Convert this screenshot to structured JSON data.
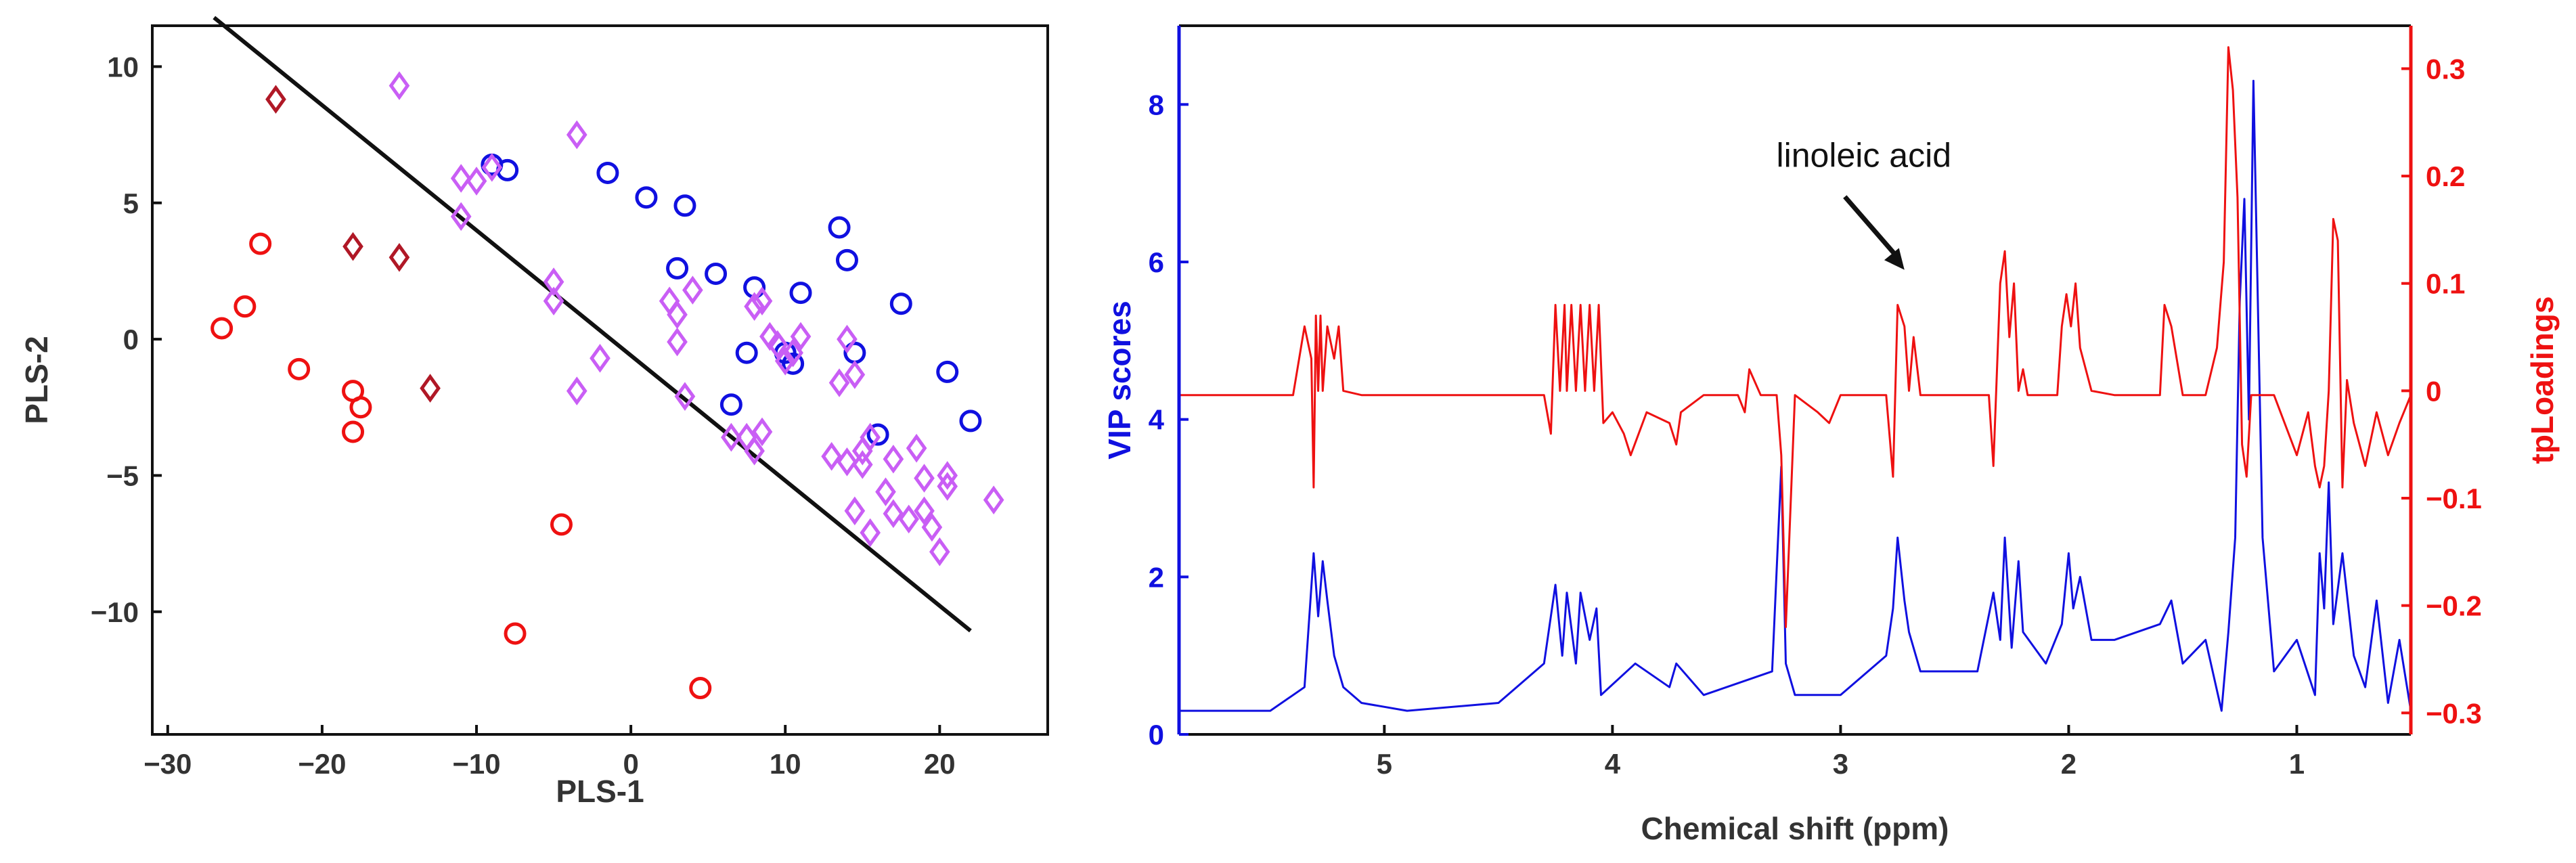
{
  "colors": {
    "blue": "#1010e0",
    "red": "#ee1111",
    "violet": "#c95ef5",
    "darkred": "#b01826",
    "black": "#111111"
  },
  "chart_data": [
    {
      "type": "scatter",
      "xlabel": "PLS-1",
      "ylabel": "PLS-2",
      "xlim": [
        -31,
        27
      ],
      "ylim": [
        -14.5,
        11.5
      ],
      "xticks": [
        -30,
        -20,
        -10,
        0,
        10,
        20
      ],
      "yticks": [
        10,
        5,
        0,
        -5,
        -10
      ],
      "xtick_labels": [
        "−30",
        "−20",
        "−10",
        "0",
        "10",
        "20"
      ],
      "ytick_labels": [
        "10",
        "5",
        "0",
        "−5",
        "−10"
      ],
      "separator_line": {
        "x": [
          -27,
          22
        ],
        "y": [
          11.8,
          -10.7
        ]
      },
      "series": [
        {
          "name": "blue circles",
          "marker": "circle",
          "color": "#1010e0",
          "points": [
            [
              -9,
              6.4
            ],
            [
              -8,
              6.2
            ],
            [
              -1.5,
              6.1
            ],
            [
              1,
              5.2
            ],
            [
              3.5,
              4.9
            ],
            [
              3,
              2.6
            ],
            [
              5.5,
              2.4
            ],
            [
              8,
              1.9
            ],
            [
              7.5,
              -0.5
            ],
            [
              6.5,
              -2.4
            ],
            [
              10,
              -0.5
            ],
            [
              10.5,
              -0.9
            ],
            [
              11,
              1.7
            ],
            [
              13.5,
              4.1
            ],
            [
              14,
              2.9
            ],
            [
              14.5,
              -0.5
            ],
            [
              16,
              -3.5
            ],
            [
              17.5,
              1.3
            ],
            [
              20.5,
              -1.2
            ],
            [
              22,
              -3
            ]
          ]
        },
        {
          "name": "violet diamonds",
          "marker": "diamond",
          "color": "#c95ef5",
          "points": [
            [
              -15,
              9.3
            ],
            [
              -11,
              5.9
            ],
            [
              -11,
              4.5
            ],
            [
              -10,
              5.8
            ],
            [
              -9,
              6.3
            ],
            [
              -3.5,
              7.5
            ],
            [
              -5,
              2.1
            ],
            [
              -5,
              1.4
            ],
            [
              -3.5,
              -1.9
            ],
            [
              -2,
              -0.7
            ],
            [
              2.5,
              1.4
            ],
            [
              3,
              -0.1
            ],
            [
              3,
              0.9
            ],
            [
              4,
              1.8
            ],
            [
              3.5,
              -2.1
            ],
            [
              6.5,
              -3.6
            ],
            [
              7.5,
              -3.6
            ],
            [
              8,
              -4.1
            ],
            [
              8.5,
              -3.4
            ],
            [
              8,
              1.2
            ],
            [
              9,
              0.1
            ],
            [
              8.5,
              1.4
            ],
            [
              9.5,
              -0.2
            ],
            [
              10.5,
              -0.5
            ],
            [
              11,
              0.1
            ],
            [
              10,
              -0.8
            ],
            [
              13,
              -4.3
            ],
            [
              13.5,
              -1.6
            ],
            [
              14,
              0
            ],
            [
              14.5,
              -1.3
            ],
            [
              14,
              -4.5
            ],
            [
              15,
              -4.6
            ],
            [
              15,
              -4.1
            ],
            [
              15.5,
              -3.6
            ],
            [
              17,
              -4.4
            ],
            [
              16.5,
              -5.6
            ],
            [
              17,
              -6.4
            ],
            [
              18,
              -6.6
            ],
            [
              18.5,
              -4
            ],
            [
              19,
              -5.1
            ],
            [
              19,
              -6.3
            ],
            [
              19.5,
              -6.9
            ],
            [
              20,
              -7.8
            ],
            [
              20.5,
              -5.4
            ],
            [
              20.5,
              -5
            ],
            [
              23.5,
              -5.9
            ],
            [
              14.5,
              -6.3
            ],
            [
              15.5,
              -7.1
            ]
          ]
        },
        {
          "name": "red circles",
          "marker": "circle",
          "color": "#ee1111",
          "points": [
            [
              -26.5,
              0.4
            ],
            [
              -25,
              1.2
            ],
            [
              -24,
              3.5
            ],
            [
              -21.5,
              -1.1
            ],
            [
              -18,
              -1.9
            ],
            [
              -17.5,
              -2.5
            ],
            [
              -18,
              -3.4
            ],
            [
              -4.5,
              -6.8
            ],
            [
              -7.5,
              -10.8
            ],
            [
              4.5,
              -12.8
            ]
          ]
        },
        {
          "name": "dark red diamonds",
          "marker": "diamond",
          "color": "#b01826",
          "points": [
            [
              -23,
              8.8
            ],
            [
              -18,
              3.4
            ],
            [
              -15,
              3
            ],
            [
              -13,
              -1.8
            ]
          ]
        }
      ]
    },
    {
      "type": "line",
      "xlabel": "Chemical shift (ppm)",
      "ylabel_left": "VIP scores",
      "ylabel_right": "tpLoadings",
      "xlim": [
        5.9,
        0.5
      ],
      "ylim_left": [
        0,
        9
      ],
      "ylim_right": [
        -0.32,
        0.34
      ],
      "xticks": [
        5,
        4,
        3,
        2,
        1
      ],
      "xtick_labels": [
        "5",
        "4",
        "3",
        "2",
        "1"
      ],
      "yticks_left": [
        0,
        2,
        4,
        6,
        8
      ],
      "ytick_labels_left": [
        "0",
        "2",
        "4",
        "6",
        "8"
      ],
      "yticks_right": [
        0.3,
        0.2,
        0.1,
        0,
        -0.1,
        -0.2,
        -0.3
      ],
      "ytick_labels_right": [
        "0.3",
        "0.2",
        "0.1",
        "0",
        "−0.1",
        "−0.2",
        "−0.3"
      ],
      "annotation": {
        "text": "linoleic acid",
        "x": 2.72,
        "y": 5.9
      },
      "series": [
        {
          "name": "VIP scores",
          "axis": "left",
          "color": "#1010e0",
          "x": [
            5.9,
            5.5,
            5.35,
            5.31,
            5.29,
            5.27,
            5.25,
            5.22,
            5.18,
            5.1,
            4.9,
            4.5,
            4.3,
            4.25,
            4.22,
            4.2,
            4.16,
            4.14,
            4.1,
            4.07,
            4.05,
            3.9,
            3.75,
            3.72,
            3.6,
            3.4,
            3.3,
            3.26,
            3.24,
            3.2,
            3.1,
            3.0,
            2.8,
            2.77,
            2.75,
            2.72,
            2.7,
            2.65,
            2.4,
            2.33,
            2.3,
            2.28,
            2.25,
            2.22,
            2.2,
            2.1,
            2.03,
            2.0,
            1.98,
            1.95,
            1.9,
            1.8,
            1.6,
            1.55,
            1.5,
            1.4,
            1.33,
            1.3,
            1.27,
            1.25,
            1.23,
            1.21,
            1.19,
            1.15,
            1.1,
            1.0,
            0.92,
            0.9,
            0.88,
            0.86,
            0.84,
            0.8,
            0.75,
            0.7,
            0.65,
            0.6,
            0.55,
            0.5
          ],
          "y": [
            0.3,
            0.3,
            0.6,
            2.3,
            1.5,
            2.2,
            1.7,
            1.0,
            0.6,
            0.4,
            0.3,
            0.4,
            0.9,
            1.9,
            1.0,
            1.8,
            0.9,
            1.8,
            1.2,
            1.6,
            0.5,
            0.9,
            0.6,
            0.9,
            0.5,
            0.7,
            0.8,
            3.4,
            0.9,
            0.5,
            0.5,
            0.5,
            1.0,
            1.6,
            2.5,
            1.7,
            1.3,
            0.8,
            0.8,
            1.8,
            1.2,
            2.5,
            1.1,
            2.2,
            1.3,
            0.9,
            1.4,
            2.3,
            1.6,
            2.0,
            1.2,
            1.2,
            1.4,
            1.7,
            0.9,
            1.2,
            0.3,
            1.3,
            2.5,
            5.5,
            6.8,
            4.0,
            8.3,
            2.5,
            0.8,
            1.2,
            0.5,
            2.3,
            1.6,
            3.2,
            1.4,
            2.3,
            1.0,
            0.6,
            1.7,
            0.4,
            1.2,
            0.3
          ]
        },
        {
          "name": "tpLoadings",
          "axis": "right",
          "color": "#ee1111",
          "x": [
            5.9,
            5.5,
            5.4,
            5.35,
            5.32,
            5.31,
            5.3,
            5.29,
            5.28,
            5.27,
            5.25,
            5.22,
            5.2,
            5.18,
            5.1,
            4.9,
            4.4,
            4.3,
            4.27,
            4.25,
            4.23,
            4.21,
            4.2,
            4.18,
            4.16,
            4.14,
            4.12,
            4.1,
            4.08,
            4.06,
            4.04,
            4.0,
            3.95,
            3.92,
            3.85,
            3.75,
            3.72,
            3.7,
            3.6,
            3.45,
            3.42,
            3.4,
            3.35,
            3.28,
            3.26,
            3.24,
            3.2,
            3.1,
            3.05,
            3.0,
            2.9,
            2.8,
            2.77,
            2.75,
            2.72,
            2.7,
            2.68,
            2.65,
            2.6,
            2.4,
            2.35,
            2.33,
            2.3,
            2.28,
            2.26,
            2.24,
            2.22,
            2.2,
            2.18,
            2.1,
            2.05,
            2.03,
            2.01,
            1.99,
            1.97,
            1.95,
            1.9,
            1.8,
            1.6,
            1.58,
            1.55,
            1.5,
            1.45,
            1.4,
            1.35,
            1.32,
            1.3,
            1.28,
            1.26,
            1.24,
            1.22,
            1.2,
            1.18,
            1.15,
            1.1,
            1.0,
            0.95,
            0.92,
            0.9,
            0.88,
            0.86,
            0.84,
            0.82,
            0.8,
            0.78,
            0.75,
            0.7,
            0.65,
            0.6,
            0.55,
            0.5
          ],
          "y": [
            -0.004,
            -0.004,
            -0.004,
            0.06,
            0.03,
            -0.09,
            0.07,
            0.0,
            0.07,
            0.0,
            0.06,
            0.03,
            0.06,
            0.0,
            -0.004,
            -0.004,
            -0.004,
            -0.004,
            -0.04,
            0.08,
            0.0,
            0.08,
            0.0,
            0.08,
            0.0,
            0.08,
            0.0,
            0.08,
            0.0,
            0.08,
            -0.03,
            -0.02,
            -0.04,
            -0.06,
            -0.02,
            -0.03,
            -0.05,
            -0.02,
            -0.004,
            -0.004,
            -0.02,
            0.02,
            -0.004,
            -0.004,
            -0.06,
            -0.22,
            -0.004,
            -0.02,
            -0.03,
            -0.004,
            -0.004,
            -0.004,
            -0.08,
            0.08,
            0.06,
            0.0,
            0.05,
            -0.004,
            -0.004,
            -0.004,
            -0.004,
            -0.07,
            0.1,
            0.13,
            0.05,
            0.1,
            0.0,
            0.02,
            -0.004,
            -0.004,
            -0.004,
            0.06,
            0.09,
            0.06,
            0.1,
            0.04,
            0.0,
            -0.004,
            -0.004,
            0.08,
            0.06,
            -0.004,
            -0.004,
            -0.004,
            0.04,
            0.12,
            0.32,
            0.28,
            0.18,
            -0.05,
            -0.08,
            -0.004,
            -0.004,
            -0.004,
            -0.004,
            -0.06,
            -0.02,
            -0.07,
            -0.09,
            -0.07,
            0.0,
            0.16,
            0.14,
            -0.09,
            0.01,
            -0.03,
            -0.07,
            -0.02,
            -0.06,
            -0.03,
            -0.004
          ]
        }
      ]
    }
  ]
}
